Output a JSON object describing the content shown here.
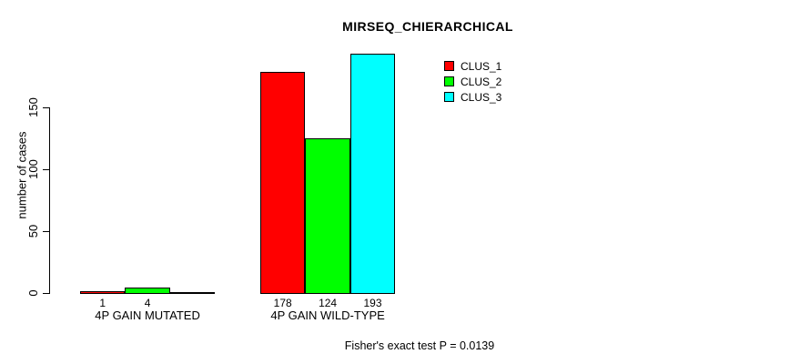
{
  "chart_data": {
    "type": "bar",
    "title": "MIRSEQ_CHIERARCHICAL",
    "xlabel": "",
    "ylabel": "number of cases",
    "ylim": [
      0,
      150
    ],
    "yticks": [
      0,
      50,
      100,
      150
    ],
    "grid": false,
    "legend_position": "top-right-inside",
    "categories": [
      "4P GAIN MUTATED",
      "4P GAIN WILD-TYPE"
    ],
    "series": [
      {
        "name": "CLUS_1",
        "color": "#FF0000",
        "values": [
          1,
          178
        ]
      },
      {
        "name": "CLUS_2",
        "color": "#00FF00",
        "values": [
          4,
          124
        ]
      },
      {
        "name": "CLUS_3",
        "color": "#00FFFF",
        "values": [
          0,
          193
        ]
      }
    ],
    "bar_value_labels": [
      [
        "1",
        "4",
        ""
      ],
      [
        "178",
        "124",
        "193"
      ]
    ],
    "annotation": "Fisher's exact test P = 0.0139",
    "colors": {
      "background": "#FFFFFF",
      "axis": "#000000",
      "text": "#000000"
    }
  }
}
